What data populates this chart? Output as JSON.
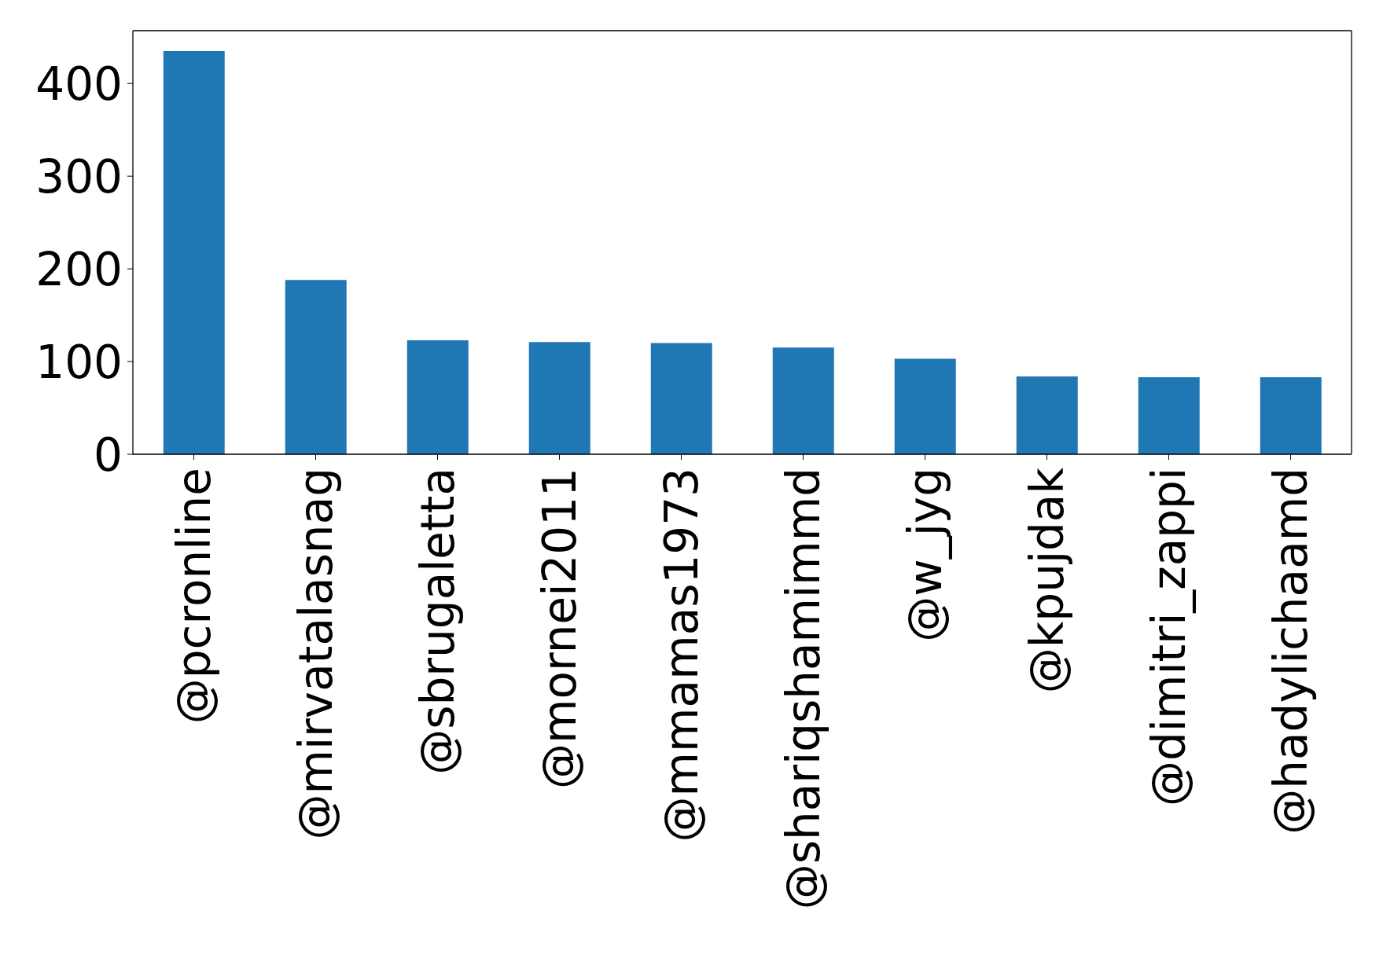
{
  "chart_data": {
    "type": "bar",
    "categories": [
      "@pcronline",
      "@mirvatalasnag",
      "@sbrugaletta",
      "@mornei2011",
      "@mmamas1973",
      "@shariqshamimmd",
      "@w_jyg",
      "@kpujdak",
      "@dimitri_zappi",
      "@hadylichaamd"
    ],
    "values": [
      435,
      188,
      123,
      121,
      120,
      115,
      103,
      84,
      83,
      83
    ],
    "color": "#1f77b4",
    "ylim": [
      0,
      457
    ],
    "yticks": [
      0,
      100,
      200,
      300,
      400
    ]
  }
}
